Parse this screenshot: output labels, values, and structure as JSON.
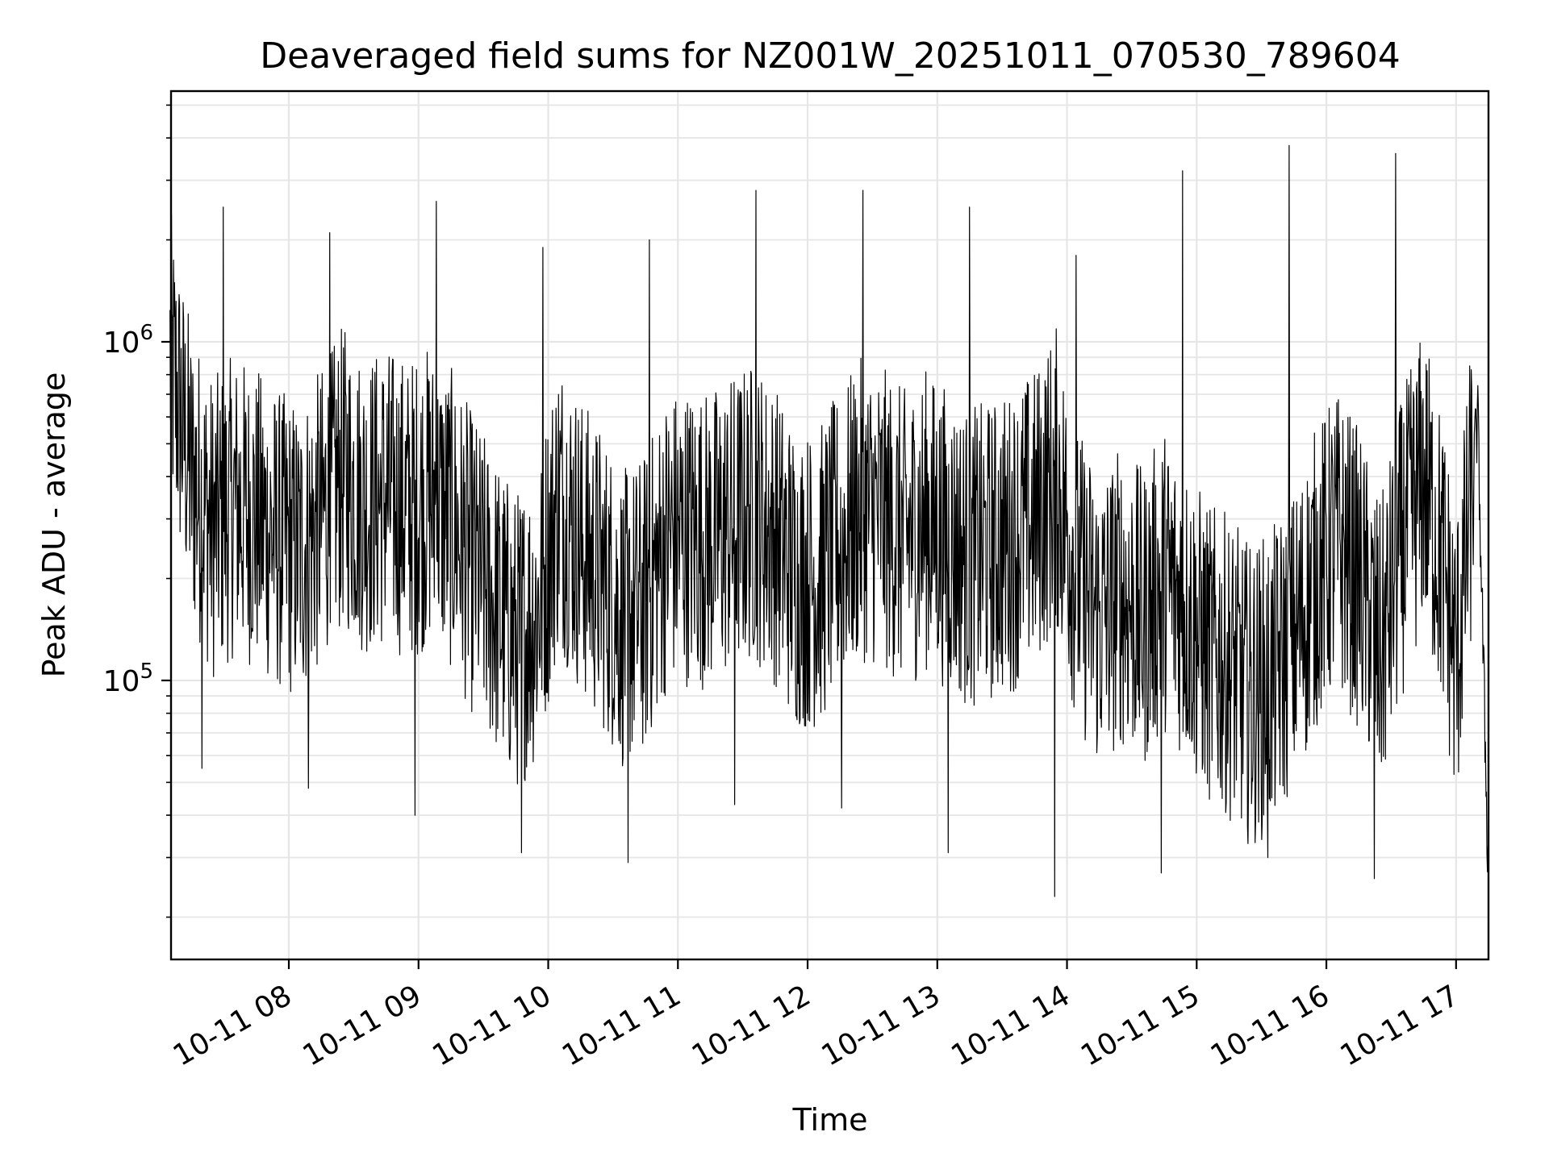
{
  "chart_data": {
    "type": "line",
    "title": "Deaveraged field sums for NZ001W_20251011_070530_789604",
    "xlabel": "Time",
    "ylabel": "Peak ADU - average",
    "yscale": "log",
    "xlim": [
      "2025-10-11 07:05:30",
      "2025-10-11 17:15:00"
    ],
    "ylim": [
      15000,
      5500000
    ],
    "grid": true,
    "grid_minor_y": true,
    "line_color": "#000000",
    "grid_color": "#e6e6e6",
    "x_ticks": [
      "2025-10-11 08:00",
      "2025-10-11 09:00",
      "2025-10-11 10:00",
      "2025-10-11 11:00",
      "2025-10-11 12:00",
      "2025-10-11 13:00",
      "2025-10-11 14:00",
      "2025-10-11 15:00",
      "2025-10-11 16:00",
      "2025-10-11 17:00"
    ],
    "x_tick_labels": [
      "10-11 08",
      "10-11 09",
      "10-11 10",
      "10-11 11",
      "10-11 12",
      "10-11 13",
      "10-11 14",
      "10-11 15",
      "10-11 16",
      "10-11 17"
    ],
    "y_ticks": [
      100000,
      1000000
    ],
    "y_tick_labels": [
      {
        "base": "10",
        "exp": "5"
      },
      {
        "base": "10",
        "exp": "6"
      }
    ],
    "series": [
      {
        "x": [
          "2025-10-11 07:05",
          "2025-10-11 07:15",
          "2025-10-11 07:25",
          "2025-10-11 07:35",
          "2025-10-11 07:45",
          "2025-10-11 07:55",
          "2025-10-11 08:05",
          "2025-10-11 08:15",
          "2025-10-11 08:25",
          "2025-10-11 08:35",
          "2025-10-11 08:45",
          "2025-10-11 08:55",
          "2025-10-11 09:05",
          "2025-10-11 09:15",
          "2025-10-11 09:25",
          "2025-10-11 09:35",
          "2025-10-11 09:45",
          "2025-10-11 09:55",
          "2025-10-11 10:05",
          "2025-10-11 10:15",
          "2025-10-11 10:25",
          "2025-10-11 10:35",
          "2025-10-11 10:45",
          "2025-10-11 10:55",
          "2025-10-11 11:05",
          "2025-10-11 11:15",
          "2025-10-11 11:25",
          "2025-10-11 11:35",
          "2025-10-11 11:45",
          "2025-10-11 11:55",
          "2025-10-11 12:05",
          "2025-10-11 12:15",
          "2025-10-11 12:25",
          "2025-10-11 12:35",
          "2025-10-11 12:45",
          "2025-10-11 12:55",
          "2025-10-11 13:05",
          "2025-10-11 13:15",
          "2025-10-11 13:25",
          "2025-10-11 13:35",
          "2025-10-11 13:45",
          "2025-10-11 13:55",
          "2025-10-11 14:05",
          "2025-10-11 14:15",
          "2025-10-11 14:25",
          "2025-10-11 14:35",
          "2025-10-11 14:45",
          "2025-10-11 14:55",
          "2025-10-11 15:05",
          "2025-10-11 15:15",
          "2025-10-11 15:25",
          "2025-10-11 15:35",
          "2025-10-11 15:45",
          "2025-10-11 15:55",
          "2025-10-11 16:05",
          "2025-10-11 16:15",
          "2025-10-11 16:25",
          "2025-10-11 16:35",
          "2025-10-11 16:45",
          "2025-10-11 16:55",
          "2025-10-11 17:00",
          "2025-10-11 17:05",
          "2025-10-11 17:10",
          "2025-10-11 17:15"
        ],
        "y": [
          900000,
          400000,
          280000,
          330000,
          300000,
          260000,
          240000,
          300000,
          400000,
          330000,
          350000,
          320000,
          350000,
          300000,
          220000,
          170000,
          130000,
          160000,
          350000,
          250000,
          200000,
          150000,
          170000,
          260000,
          270000,
          260000,
          290000,
          320000,
          270000,
          200000,
          200000,
          260000,
          320000,
          300000,
          260000,
          300000,
          260000,
          230000,
          240000,
          260000,
          300000,
          400000,
          200000,
          150000,
          180000,
          150000,
          200000,
          160000,
          120000,
          110000,
          90000,
          100000,
          130000,
          200000,
          260000,
          200000,
          120000,
          250000,
          400000,
          200000,
          110000,
          250000,
          600000,
          25000
        ],
        "spikes_high": [
          2500000,
          2100000,
          2600000,
          1900000,
          2000000,
          2800000,
          2800000,
          2500000,
          1800000,
          3200000,
          3800000,
          3600000
        ],
        "spikes_low": [
          55000,
          48000,
          40000,
          31000,
          29000,
          43000,
          42000,
          31000,
          23000,
          27000,
          30000,
          26000
        ]
      }
    ]
  }
}
